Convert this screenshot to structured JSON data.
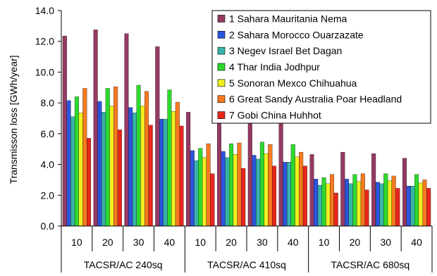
{
  "chart_data": {
    "type": "bar",
    "ylabel": "Transmisson loss [GWh/year]",
    "xlabel": "",
    "title": "",
    "ylim": [
      0,
      14
    ],
    "yticks": [
      "0.0",
      "2.0",
      "4.0",
      "6.0",
      "8.0",
      "10.0",
      "12.0",
      "14.0"
    ],
    "grid": false,
    "legend_position": "top-right",
    "categories": [
      "10",
      "20",
      "30",
      "40",
      "10",
      "20",
      "30",
      "40",
      "10",
      "20",
      "30",
      "40"
    ],
    "groups": [
      {
        "label": "TACSR/AC 240sq",
        "span": 4
      },
      {
        "label": "TACSR/AC 410sq",
        "span": 4
      },
      {
        "label": "TACSR/AC 680sq",
        "span": 4
      }
    ],
    "series": [
      {
        "name": "1 Sahara Mauritania Nema",
        "color": "#953a62",
        "values": [
          12.35,
          12.75,
          12.5,
          11.65,
          7.4,
          7.65,
          7.5,
          7.0,
          4.65,
          4.8,
          4.7,
          4.4
        ]
      },
      {
        "name": "2 Sahara Morocco Ouarzazate",
        "color": "#2c55dd",
        "values": [
          8.15,
          8.1,
          7.7,
          6.95,
          4.9,
          4.85,
          4.6,
          4.15,
          3.05,
          3.05,
          2.85,
          2.6
        ]
      },
      {
        "name": "3 Negev Israel Bet Dagan",
        "color": "#39b3a9",
        "values": [
          7.1,
          7.4,
          7.35,
          6.95,
          4.25,
          4.45,
          4.35,
          4.15,
          2.65,
          2.75,
          2.75,
          2.6
        ]
      },
      {
        "name": "4 Thar India Jodhpur",
        "color": "#2ed92e",
        "values": [
          8.4,
          8.95,
          9.15,
          8.85,
          5.05,
          5.35,
          5.45,
          5.3,
          3.15,
          3.35,
          3.4,
          3.35
        ]
      },
      {
        "name": "5 Sonoran Mexco Chihuahua",
        "color": "#f0f020",
        "values": [
          7.35,
          7.8,
          7.8,
          7.45,
          4.45,
          4.65,
          4.7,
          4.5,
          2.75,
          2.9,
          2.95,
          2.8
        ]
      },
      {
        "name": "6 Great Sandy Australia Poar Headland",
        "color": "#f57a20",
        "values": [
          8.95,
          9.05,
          8.75,
          8.05,
          5.35,
          5.4,
          5.3,
          4.8,
          3.35,
          3.4,
          3.25,
          3.0
        ]
      },
      {
        "name": "7 Gobi China Huhhot",
        "color": "#e8261c",
        "values": [
          5.7,
          6.25,
          6.55,
          6.5,
          3.4,
          3.75,
          3.9,
          3.9,
          2.15,
          2.35,
          2.45,
          2.45
        ]
      }
    ]
  }
}
